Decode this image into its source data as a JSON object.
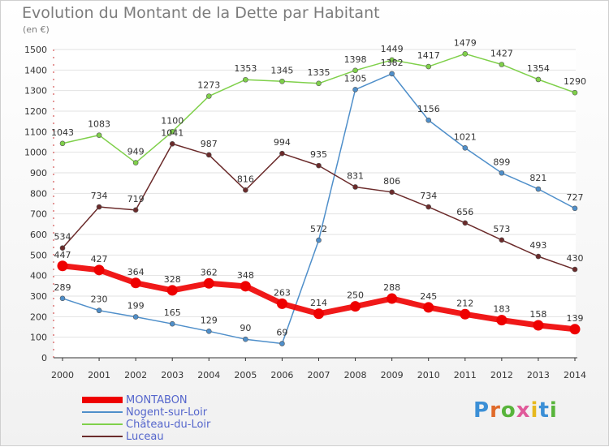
{
  "title": "Evolution du Montant de la Dette par Habitant",
  "subtitle": "(en €)",
  "logo": {
    "text": "Proxiti",
    "letter_colors": [
      "#3b8fd6",
      "#e06a2a",
      "#58b43b",
      "#e05a9a",
      "#e6b81e",
      "#3b8fd6",
      "#58b43b"
    ]
  },
  "chart_data": {
    "type": "line",
    "title": "Evolution du Montant de la Dette par Habitant",
    "ylabel": "(en €)",
    "xlabel": "",
    "categories": [
      "2000",
      "2001",
      "2002",
      "2003",
      "2004",
      "2005",
      "2006",
      "2007",
      "2008",
      "2009",
      "2010",
      "2011",
      "2012",
      "2013",
      "2014"
    ],
    "ylim": [
      0,
      1500
    ],
    "yticks": [
      0,
      100,
      200,
      300,
      400,
      500,
      600,
      700,
      800,
      900,
      1000,
      1100,
      1200,
      1300,
      1400,
      1500
    ],
    "grid": true,
    "legend_position": "bottom-left",
    "series": [
      {
        "name": "MONTABON",
        "color": "#ee0000",
        "bold": true,
        "values": [
          447,
          427,
          364,
          328,
          362,
          348,
          263,
          214,
          250,
          288,
          245,
          212,
          183,
          158,
          139
        ]
      },
      {
        "name": "Nogent-sur-Loir",
        "color": "#4f8fca",
        "bold": false,
        "values": [
          289,
          230,
          199,
          165,
          129,
          90,
          69,
          572,
          1305,
          1382,
          1156,
          1021,
          899,
          821,
          727
        ]
      },
      {
        "name": "Château-du-Loir",
        "color": "#7fd04a",
        "bold": false,
        "values": [
          1043,
          1083,
          949,
          1100,
          1273,
          1353,
          1345,
          1335,
          1398,
          1449,
          1417,
          1479,
          1427,
          1354,
          1290
        ]
      },
      {
        "name": "Luceau",
        "color": "#6b2b2b",
        "bold": false,
        "values": [
          534,
          734,
          719,
          1041,
          987,
          816,
          994,
          935,
          831,
          806,
          734,
          656,
          573,
          493,
          430
        ]
      }
    ]
  }
}
